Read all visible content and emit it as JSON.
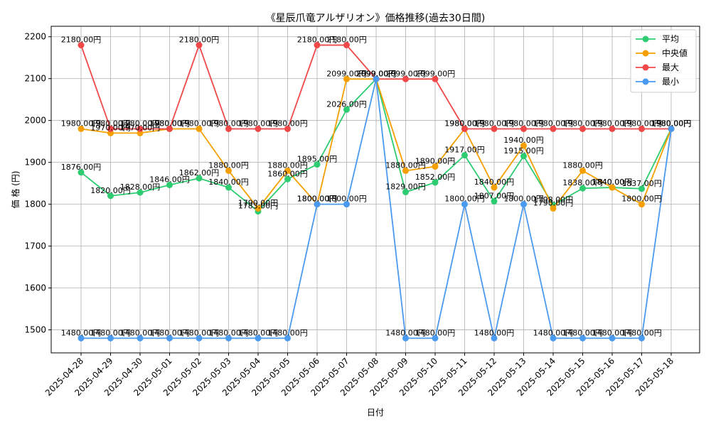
{
  "chart_data": {
    "type": "line",
    "title": "《星辰爪竜アルザリオン》価格推移(過去30日間)",
    "xlabel": "日付",
    "ylabel": "価 格 (円)",
    "ylim": [
      1445,
      2225
    ],
    "yticks": [
      1500,
      1600,
      1700,
      1800,
      1900,
      2000,
      2100,
      2200
    ],
    "grid": true,
    "legend_position": "top-right",
    "label_suffix": "円",
    "categories": [
      "2025-04-28",
      "2025-04-29",
      "2025-04-30",
      "2025-05-01",
      "2025-05-02",
      "2025-05-03",
      "2025-05-04",
      "2025-05-05",
      "2025-05-06",
      "2025-05-07",
      "2025-05-08",
      "2025-05-09",
      "2025-05-10",
      "2025-05-11",
      "2025-05-12",
      "2025-05-13",
      "2025-05-14",
      "2025-05-15",
      "2025-05-16",
      "2025-05-17",
      "2025-05-18"
    ],
    "series": [
      {
        "name": "平均",
        "color": "#2ecc71",
        "values": [
          1876,
          1820,
          1828,
          1846,
          1862,
          1840,
          1783,
          1860,
          1895,
          2026,
          2099,
          1829,
          1852,
          1917,
          1807,
          1915,
          1798,
          1838,
          1840,
          1837,
          1980
        ]
      },
      {
        "name": " 中央値",
        "color": "#f5a000",
        "values": [
          1980,
          1970,
          1970,
          1980,
          1980,
          1880,
          1790,
          1880,
          1800,
          2099,
          2099,
          1880,
          1890,
          1980,
          1840,
          1940,
          1790,
          1880,
          1840,
          1800,
          1980
        ]
      },
      {
        "name": "最大",
        "color": "#f04848",
        "values": [
          2180,
          1980,
          1980,
          1980,
          2180,
          1980,
          1980,
          1980,
          2180,
          2180,
          2099,
          2099,
          2099,
          1980,
          1980,
          1980,
          1980,
          1980,
          1980,
          1980,
          1980
        ]
      },
      {
        "name": "最小",
        "color": "#4a9af0",
        "values": [
          1480,
          1480,
          1480,
          1480,
          1480,
          1480,
          1480,
          1480,
          1800,
          1800,
          2099,
          1480,
          1480,
          1800,
          1480,
          1800,
          1480,
          1480,
          1480,
          1480,
          1980
        ]
      }
    ]
  }
}
